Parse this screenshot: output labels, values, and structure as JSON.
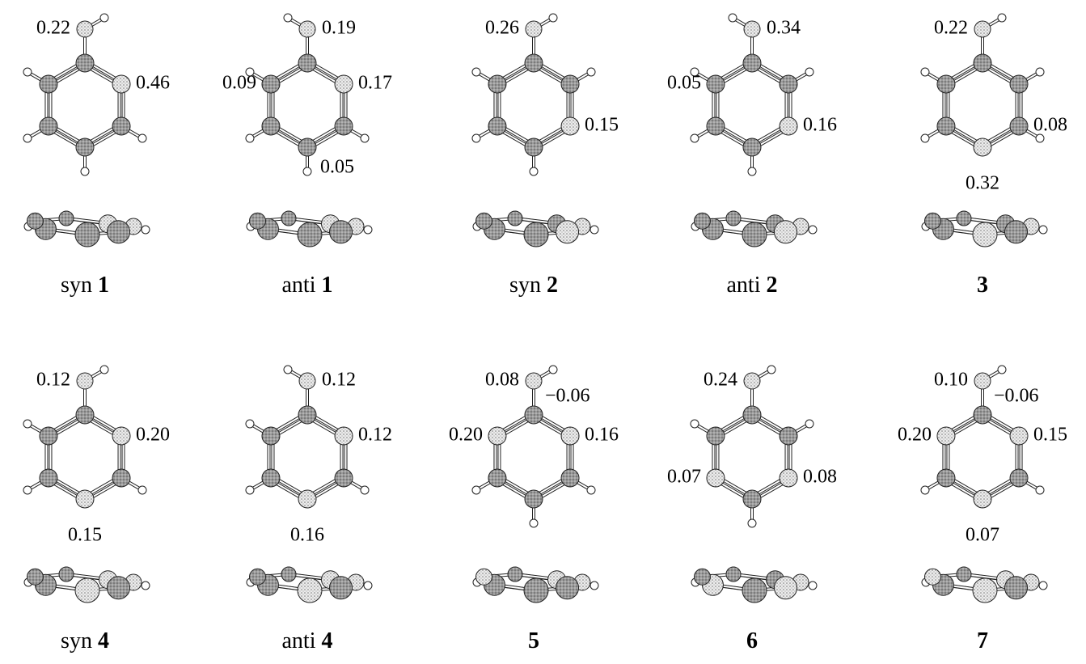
{
  "panels": [
    {
      "label": {
        "prefix": "syn",
        "number": "1"
      },
      "charges": [
        "0.22",
        "0.46"
      ]
    },
    {
      "label": {
        "prefix": "anti",
        "number": "1"
      },
      "charges": [
        "0.19",
        "0.09",
        "0.17",
        "0.05"
      ]
    },
    {
      "label": {
        "prefix": "syn",
        "number": "2"
      },
      "charges": [
        "0.26",
        "0.15"
      ]
    },
    {
      "label": {
        "prefix": "anti",
        "number": "2"
      },
      "charges": [
        "0.34",
        "0.05",
        "0.16"
      ]
    },
    {
      "label": {
        "number": "3"
      },
      "charges": [
        "0.22",
        "0.08",
        "0.32"
      ]
    },
    {
      "label": {
        "prefix": "syn",
        "number": "4"
      },
      "charges": [
        "0.12",
        "0.20",
        "0.15"
      ]
    },
    {
      "label": {
        "prefix": "anti",
        "number": "4"
      },
      "charges": [
        "0.12",
        "0.12",
        "0.16"
      ]
    },
    {
      "label": {
        "number": "5"
      },
      "charges": [
        "0.08",
        "−0.06",
        "0.20",
        "0.16"
      ]
    },
    {
      "label": {
        "number": "6"
      },
      "charges": [
        "0.24",
        "0.07",
        "0.08"
      ]
    },
    {
      "label": {
        "number": "7"
      },
      "charges": [
        "0.10",
        "−0.06",
        "0.20",
        "0.15",
        "0.07"
      ]
    }
  ]
}
